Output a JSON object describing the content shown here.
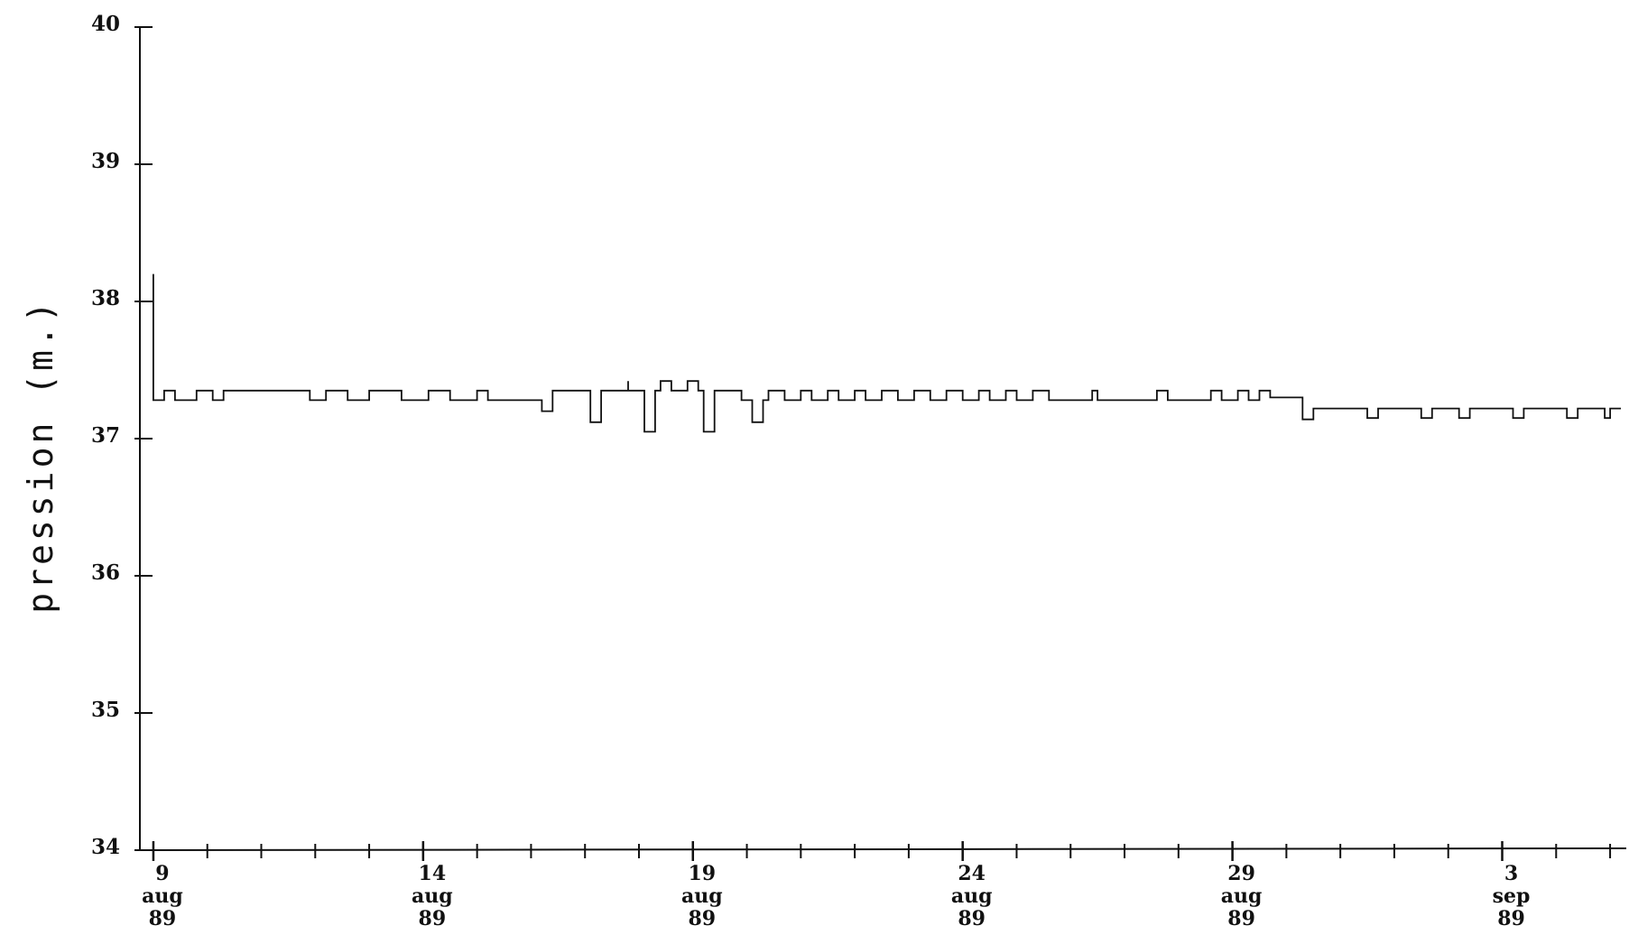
{
  "chart_data": {
    "type": "line",
    "title": "",
    "ylabel": "pression (m.)",
    "xlabel": "",
    "ylim": [
      34,
      40
    ],
    "y_ticks": [
      "34",
      "35",
      "36",
      "37",
      "38",
      "39",
      "40"
    ],
    "xlim_days": [
      8.75,
      36.3
    ],
    "x_major_ticks": [
      {
        "day": 9,
        "labels": [
          "9",
          "aug",
          "89"
        ]
      },
      {
        "day": 14,
        "labels": [
          "14",
          "aug",
          "89"
        ]
      },
      {
        "day": 19,
        "labels": [
          "19",
          "aug",
          "89"
        ]
      },
      {
        "day": 24,
        "labels": [
          "24",
          "aug",
          "89"
        ]
      },
      {
        "day": 29,
        "labels": [
          "29",
          "aug",
          "89"
        ]
      },
      {
        "day": 34,
        "labels": [
          "3",
          "sep",
          "89"
        ]
      }
    ],
    "grid": false,
    "legend": "none",
    "series": [
      {
        "color": "#111111",
        "points": [
          [
            9.0,
            38.2
          ],
          [
            9.0,
            37.28
          ],
          [
            9.2,
            37.28
          ],
          [
            9.2,
            37.35
          ],
          [
            9.4,
            37.35
          ],
          [
            9.4,
            37.28
          ],
          [
            9.8,
            37.28
          ],
          [
            9.8,
            37.35
          ],
          [
            10.1,
            37.35
          ],
          [
            10.1,
            37.28
          ],
          [
            10.3,
            37.28
          ],
          [
            10.3,
            37.35
          ],
          [
            11.9,
            37.35
          ],
          [
            11.9,
            37.28
          ],
          [
            12.2,
            37.28
          ],
          [
            12.2,
            37.35
          ],
          [
            12.6,
            37.35
          ],
          [
            12.6,
            37.28
          ],
          [
            13.0,
            37.28
          ],
          [
            13.0,
            37.35
          ],
          [
            13.6,
            37.35
          ],
          [
            13.6,
            37.28
          ],
          [
            14.1,
            37.28
          ],
          [
            14.1,
            37.35
          ],
          [
            14.5,
            37.35
          ],
          [
            14.5,
            37.28
          ],
          [
            15.0,
            37.28
          ],
          [
            15.0,
            37.35
          ],
          [
            15.2,
            37.35
          ],
          [
            15.2,
            37.28
          ],
          [
            16.2,
            37.28
          ],
          [
            16.2,
            37.2
          ],
          [
            16.4,
            37.2
          ],
          [
            16.4,
            37.35
          ],
          [
            17.1,
            37.35
          ],
          [
            17.1,
            37.12
          ],
          [
            17.3,
            37.12
          ],
          [
            17.3,
            37.35
          ],
          [
            17.8,
            37.35
          ],
          [
            17.8,
            37.42
          ],
          [
            17.8,
            37.35
          ],
          [
            18.1,
            37.35
          ],
          [
            18.1,
            37.05
          ],
          [
            18.3,
            37.05
          ],
          [
            18.3,
            37.35
          ],
          [
            18.4,
            37.35
          ],
          [
            18.4,
            37.42
          ],
          [
            18.6,
            37.42
          ],
          [
            18.6,
            37.35
          ],
          [
            18.9,
            37.35
          ],
          [
            18.9,
            37.42
          ],
          [
            19.1,
            37.42
          ],
          [
            19.1,
            37.35
          ],
          [
            19.2,
            37.35
          ],
          [
            19.2,
            37.05
          ],
          [
            19.4,
            37.05
          ],
          [
            19.4,
            37.35
          ],
          [
            19.9,
            37.35
          ],
          [
            19.9,
            37.28
          ],
          [
            20.1,
            37.28
          ],
          [
            20.1,
            37.12
          ],
          [
            20.3,
            37.12
          ],
          [
            20.3,
            37.28
          ],
          [
            20.4,
            37.28
          ],
          [
            20.4,
            37.35
          ],
          [
            20.7,
            37.35
          ],
          [
            20.7,
            37.28
          ],
          [
            21.0,
            37.28
          ],
          [
            21.0,
            37.35
          ],
          [
            21.2,
            37.35
          ],
          [
            21.2,
            37.28
          ],
          [
            21.5,
            37.28
          ],
          [
            21.5,
            37.35
          ],
          [
            21.7,
            37.35
          ],
          [
            21.7,
            37.28
          ],
          [
            22.0,
            37.28
          ],
          [
            22.0,
            37.35
          ],
          [
            22.2,
            37.35
          ],
          [
            22.2,
            37.28
          ],
          [
            22.5,
            37.28
          ],
          [
            22.5,
            37.35
          ],
          [
            22.8,
            37.35
          ],
          [
            22.8,
            37.28
          ],
          [
            23.1,
            37.28
          ],
          [
            23.1,
            37.35
          ],
          [
            23.4,
            37.35
          ],
          [
            23.4,
            37.28
          ],
          [
            23.7,
            37.28
          ],
          [
            23.7,
            37.35
          ],
          [
            24.0,
            37.35
          ],
          [
            24.0,
            37.28
          ],
          [
            24.3,
            37.28
          ],
          [
            24.3,
            37.35
          ],
          [
            24.5,
            37.35
          ],
          [
            24.5,
            37.28
          ],
          [
            24.8,
            37.28
          ],
          [
            24.8,
            37.35
          ],
          [
            25.0,
            37.35
          ],
          [
            25.0,
            37.28
          ],
          [
            25.3,
            37.28
          ],
          [
            25.3,
            37.35
          ],
          [
            25.6,
            37.35
          ],
          [
            25.6,
            37.28
          ],
          [
            26.4,
            37.28
          ],
          [
            26.4,
            37.35
          ],
          [
            26.5,
            37.35
          ],
          [
            26.5,
            37.28
          ],
          [
            27.6,
            37.28
          ],
          [
            27.6,
            37.35
          ],
          [
            27.8,
            37.35
          ],
          [
            27.8,
            37.28
          ],
          [
            28.6,
            37.28
          ],
          [
            28.6,
            37.35
          ],
          [
            28.8,
            37.35
          ],
          [
            28.8,
            37.28
          ],
          [
            29.1,
            37.28
          ],
          [
            29.1,
            37.35
          ],
          [
            29.3,
            37.35
          ],
          [
            29.3,
            37.28
          ],
          [
            29.5,
            37.28
          ],
          [
            29.5,
            37.35
          ],
          [
            29.7,
            37.35
          ],
          [
            29.7,
            37.3
          ],
          [
            30.3,
            37.3
          ],
          [
            30.3,
            37.14
          ],
          [
            30.5,
            37.14
          ],
          [
            30.5,
            37.22
          ],
          [
            31.5,
            37.22
          ],
          [
            31.5,
            37.15
          ],
          [
            31.7,
            37.15
          ],
          [
            31.7,
            37.22
          ],
          [
            32.5,
            37.22
          ],
          [
            32.5,
            37.15
          ],
          [
            32.7,
            37.15
          ],
          [
            32.7,
            37.22
          ],
          [
            33.2,
            37.22
          ],
          [
            33.2,
            37.15
          ],
          [
            33.4,
            37.15
          ],
          [
            33.4,
            37.22
          ],
          [
            34.2,
            37.22
          ],
          [
            34.2,
            37.15
          ],
          [
            34.4,
            37.15
          ],
          [
            34.4,
            37.22
          ],
          [
            35.2,
            37.22
          ],
          [
            35.2,
            37.15
          ],
          [
            35.4,
            37.15
          ],
          [
            35.4,
            37.22
          ],
          [
            35.9,
            37.22
          ],
          [
            35.9,
            37.15
          ],
          [
            36.0,
            37.15
          ],
          [
            36.0,
            37.22
          ],
          [
            36.2,
            37.22
          ]
        ]
      }
    ]
  }
}
